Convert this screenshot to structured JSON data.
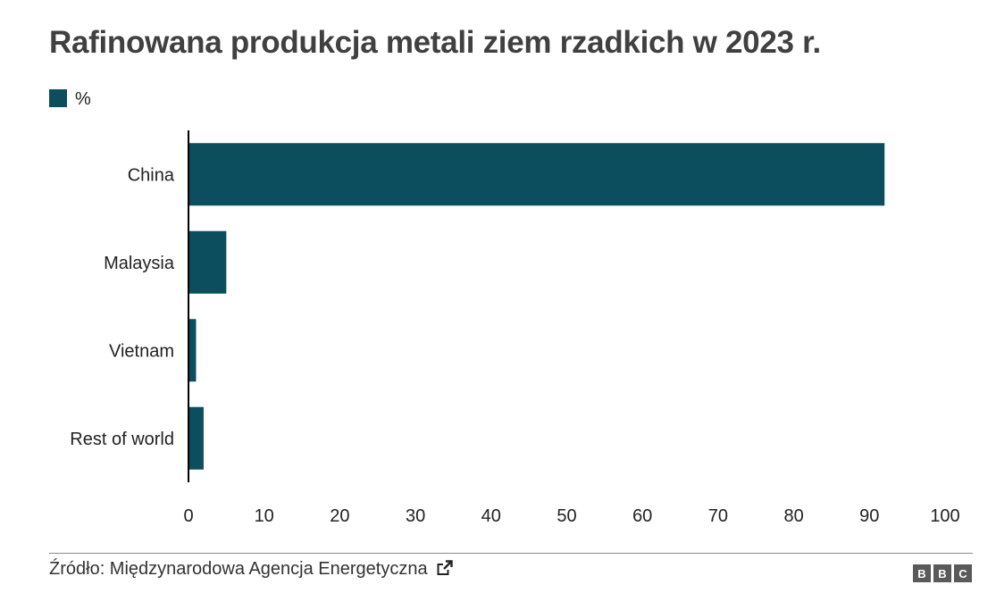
{
  "title": "Rafinowana produkcja metali ziem rzadkich w 2023 r.",
  "legend": {
    "label": "%",
    "color": "#0c4d5e"
  },
  "source": {
    "text": "Źródło: Międzynarodowa Agencja Energetyczna",
    "icon": "external-link-icon"
  },
  "logo": {
    "letters": [
      "B",
      "B",
      "C"
    ],
    "color": "#5a5a5a"
  },
  "chart_data": {
    "type": "bar",
    "orientation": "horizontal",
    "categories": [
      "China",
      "Malaysia",
      "Vietnam",
      "Rest of world"
    ],
    "series": [
      {
        "name": "%",
        "values": [
          92,
          5,
          1,
          2
        ],
        "color": "#0c4d5e"
      }
    ],
    "xlim": [
      0,
      100
    ],
    "xticks": [
      0,
      10,
      20,
      30,
      40,
      50,
      60,
      70,
      80,
      90,
      100
    ],
    "legend_position": "top-left",
    "grid": false
  }
}
